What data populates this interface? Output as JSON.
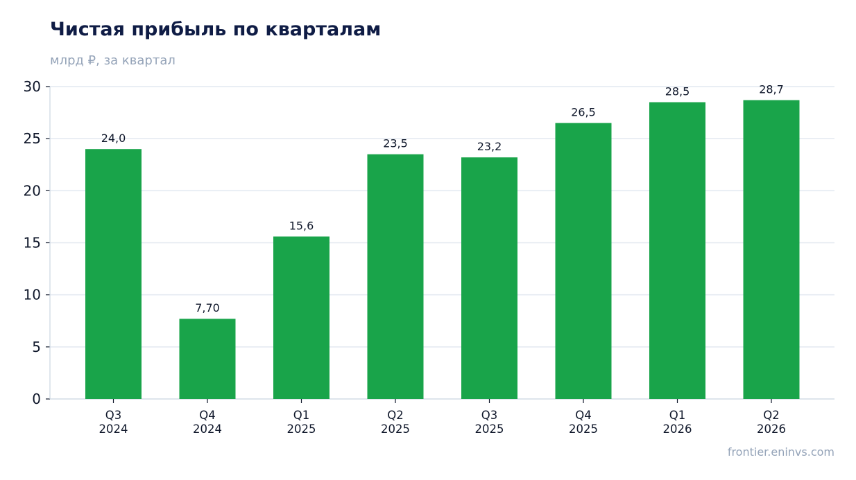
{
  "header": {
    "title": "Чистая прибыль по кварталам",
    "subtitle": "млрд ₽, за квартал"
  },
  "footer": {
    "source": "frontier.eninvs.com"
  },
  "colors": {
    "bar": "#19a44a",
    "grid": "#e2e8f0",
    "axis": "#cbd5e1",
    "tick_text": "#0f172a"
  },
  "chart_data": {
    "type": "bar",
    "title": "Чистая прибыль по кварталам",
    "subtitle": "млрд ₽, за квартал",
    "xlabel": "",
    "ylabel": "",
    "categories": [
      [
        "Q3",
        "2024"
      ],
      [
        "Q4",
        "2024"
      ],
      [
        "Q1",
        "2025"
      ],
      [
        "Q2",
        "2025"
      ],
      [
        "Q3",
        "2025"
      ],
      [
        "Q4",
        "2025"
      ],
      [
        "Q1",
        "2026"
      ],
      [
        "Q2",
        "2026"
      ]
    ],
    "values": [
      24.0,
      7.7,
      15.6,
      23.5,
      23.2,
      26.5,
      28.5,
      28.7
    ],
    "value_labels": [
      "24,0",
      "7,70",
      "15,6",
      "23,5",
      "23,2",
      "26,5",
      "28,5",
      "28,7"
    ],
    "ylim": [
      0,
      30
    ],
    "yticks": [
      0,
      5,
      10,
      15,
      20,
      25,
      30
    ],
    "grid": true,
    "legend": "none"
  }
}
